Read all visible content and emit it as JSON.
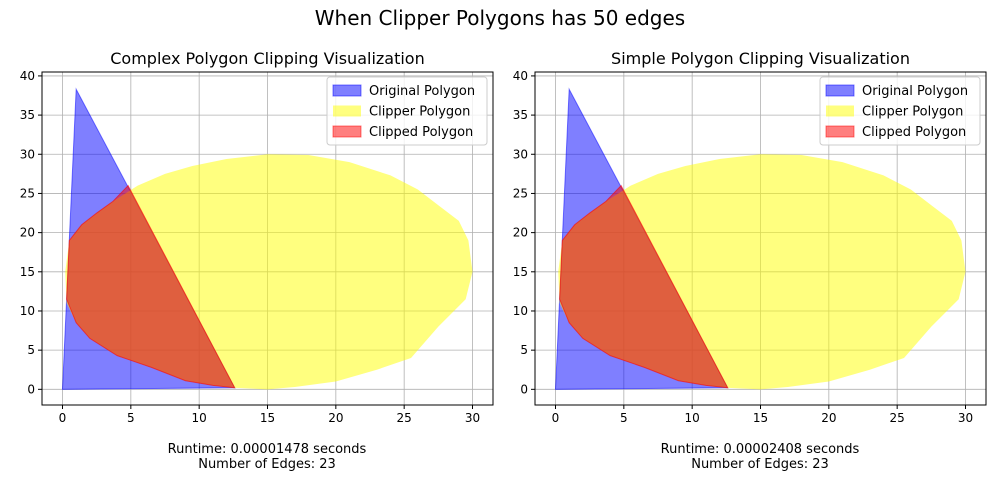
{
  "suptitle": "When Clipper Polygons has 50 edges",
  "colors": {
    "original": "#0000ff",
    "clipper": "#ffff00",
    "clipped": "#ff0000",
    "clipped_edge": "#ff0000",
    "grid": "#b0b0b0"
  },
  "chart_data": [
    {
      "type": "area",
      "title": "Complex Polygon Clipping Visualization",
      "xlabel": "",
      "ylabel": "",
      "xlim": [
        -1.5,
        31.5
      ],
      "ylim": [
        -2,
        40.5
      ],
      "xticks": [
        0,
        5,
        10,
        15,
        20,
        25,
        30
      ],
      "yticks": [
        0,
        5,
        10,
        15,
        20,
        25,
        30,
        35,
        40
      ],
      "grid": true,
      "legend_position": "top-right",
      "legend": [
        "Original Polygon",
        "Clipper Polygon",
        "Clipped Polygon"
      ],
      "series": [
        {
          "name": "Original Polygon",
          "alpha": 0.5,
          "points": [
            [
              0,
              0
            ],
            [
              1,
              38.3
            ],
            [
              12.6,
              0.2
            ]
          ]
        },
        {
          "name": "Clipper Polygon",
          "alpha": 0.5,
          "points": [
            [
              0.2,
              15
            ],
            [
              0.5,
              19
            ],
            [
              1.4,
              21
            ],
            [
              2.5,
              22.5
            ],
            [
              3.7,
              24
            ],
            [
              5.5,
              26
            ],
            [
              7.5,
              27.5
            ],
            [
              9.5,
              28.5
            ],
            [
              12,
              29.4
            ],
            [
              15,
              30
            ],
            [
              18,
              29.9
            ],
            [
              21,
              29
            ],
            [
              24,
              27.3
            ],
            [
              26,
              25.5
            ],
            [
              27.5,
              23.5
            ],
            [
              29,
              21.5
            ],
            [
              29.7,
              19
            ],
            [
              30,
              15
            ],
            [
              29.5,
              11.5
            ],
            [
              27.5,
              8
            ],
            [
              25.5,
              4
            ],
            [
              23,
              2.5
            ],
            [
              20,
              1
            ],
            [
              17,
              0.3
            ],
            [
              15,
              0
            ],
            [
              12.5,
              0.2
            ],
            [
              11,
              0.5
            ],
            [
              9,
              1.1
            ],
            [
              6.5,
              2.8
            ],
            [
              4,
              4.3
            ],
            [
              2,
              6.5
            ],
            [
              1,
              8.5
            ],
            [
              0.3,
              11
            ]
          ]
        },
        {
          "name": "Clipped Polygon",
          "alpha": 0.5,
          "points": [
            [
              0.3,
              11.5
            ],
            [
              0.5,
              19
            ],
            [
              1.4,
              21
            ],
            [
              2.5,
              22.5
            ],
            [
              3.7,
              24
            ],
            [
              4.8,
              26
            ],
            [
              12.6,
              0.2
            ],
            [
              11,
              0.5
            ],
            [
              9,
              1.1
            ],
            [
              6.5,
              2.8
            ],
            [
              4,
              4.3
            ],
            [
              2,
              6.5
            ],
            [
              1,
              8.5
            ]
          ]
        }
      ],
      "caption": {
        "runtime": "Runtime: 0.00001478 seconds",
        "edges": "Number of Edges: 23"
      }
    },
    {
      "type": "area",
      "title": "Simple Polygon Clipping Visualization",
      "xlabel": "",
      "ylabel": "",
      "xlim": [
        -1.5,
        31.5
      ],
      "ylim": [
        -2,
        40.5
      ],
      "xticks": [
        0,
        5,
        10,
        15,
        20,
        25,
        30
      ],
      "yticks": [
        0,
        5,
        10,
        15,
        20,
        25,
        30,
        35,
        40
      ],
      "grid": true,
      "legend_position": "top-right",
      "legend": [
        "Original Polygon",
        "Clipper Polygon",
        "Clipped Polygon"
      ],
      "series": [
        {
          "name": "Original Polygon",
          "alpha": 0.5,
          "points": [
            [
              0,
              0
            ],
            [
              1,
              38.3
            ],
            [
              12.6,
              0.2
            ]
          ]
        },
        {
          "name": "Clipper Polygon",
          "alpha": 0.5,
          "points": [
            [
              0.2,
              15
            ],
            [
              0.5,
              19
            ],
            [
              1.4,
              21
            ],
            [
              2.5,
              22.5
            ],
            [
              3.7,
              24
            ],
            [
              5.5,
              26
            ],
            [
              7.5,
              27.5
            ],
            [
              9.5,
              28.5
            ],
            [
              12,
              29.4
            ],
            [
              15,
              30
            ],
            [
              18,
              29.9
            ],
            [
              21,
              29
            ],
            [
              24,
              27.3
            ],
            [
              26,
              25.5
            ],
            [
              27.5,
              23.5
            ],
            [
              29,
              21.5
            ],
            [
              29.7,
              19
            ],
            [
              30,
              15
            ],
            [
              29.5,
              11.5
            ],
            [
              27.5,
              8
            ],
            [
              25.5,
              4
            ],
            [
              23,
              2.5
            ],
            [
              20,
              1
            ],
            [
              17,
              0.3
            ],
            [
              15,
              0
            ],
            [
              12.5,
              0.2
            ],
            [
              11,
              0.5
            ],
            [
              9,
              1.1
            ],
            [
              6.5,
              2.8
            ],
            [
              4,
              4.3
            ],
            [
              2,
              6.5
            ],
            [
              1,
              8.5
            ],
            [
              0.3,
              11
            ]
          ]
        },
        {
          "name": "Clipped Polygon",
          "alpha": 0.5,
          "points": [
            [
              0.3,
              11.5
            ],
            [
              0.5,
              19
            ],
            [
              1.4,
              21
            ],
            [
              2.5,
              22.5
            ],
            [
              3.7,
              24
            ],
            [
              4.8,
              26
            ],
            [
              12.6,
              0.2
            ],
            [
              11,
              0.5
            ],
            [
              9,
              1.1
            ],
            [
              6.5,
              2.8
            ],
            [
              4,
              4.3
            ],
            [
              2,
              6.5
            ],
            [
              1,
              8.5
            ]
          ]
        }
      ],
      "caption": {
        "runtime": "Runtime: 0.00002408 seconds",
        "edges": "Number of Edges: 23"
      }
    }
  ]
}
